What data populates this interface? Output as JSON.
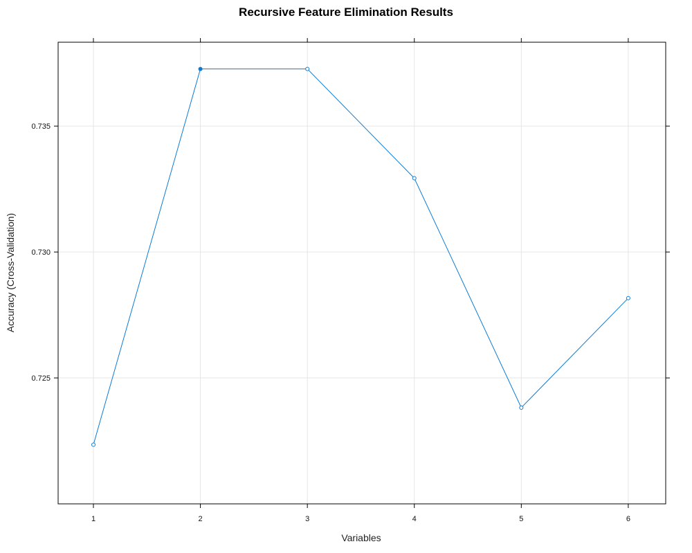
{
  "chart_data": {
    "type": "line",
    "title": "Recursive Feature Elimination Results",
    "xlabel": "Variables",
    "ylabel": "Accuracy (Cross-Validation)",
    "x": [
      1,
      2,
      3,
      4,
      5,
      6
    ],
    "y": [
      0.72235,
      0.73727,
      0.73727,
      0.73293,
      0.72382,
      0.72817
    ],
    "best_index": 1,
    "xticks": [
      "1",
      "2",
      "3",
      "4",
      "5",
      "6"
    ],
    "yticks": [
      0.725,
      0.73,
      0.735
    ],
    "ytick_labels": [
      "0.725",
      "0.730",
      "0.735"
    ],
    "xlim": [
      0.67,
      6.35
    ],
    "ylim": [
      0.72,
      0.73833
    ],
    "grid": true,
    "colors": {
      "series": "#0a7bd6",
      "grid": "#e6e6e6"
    }
  }
}
